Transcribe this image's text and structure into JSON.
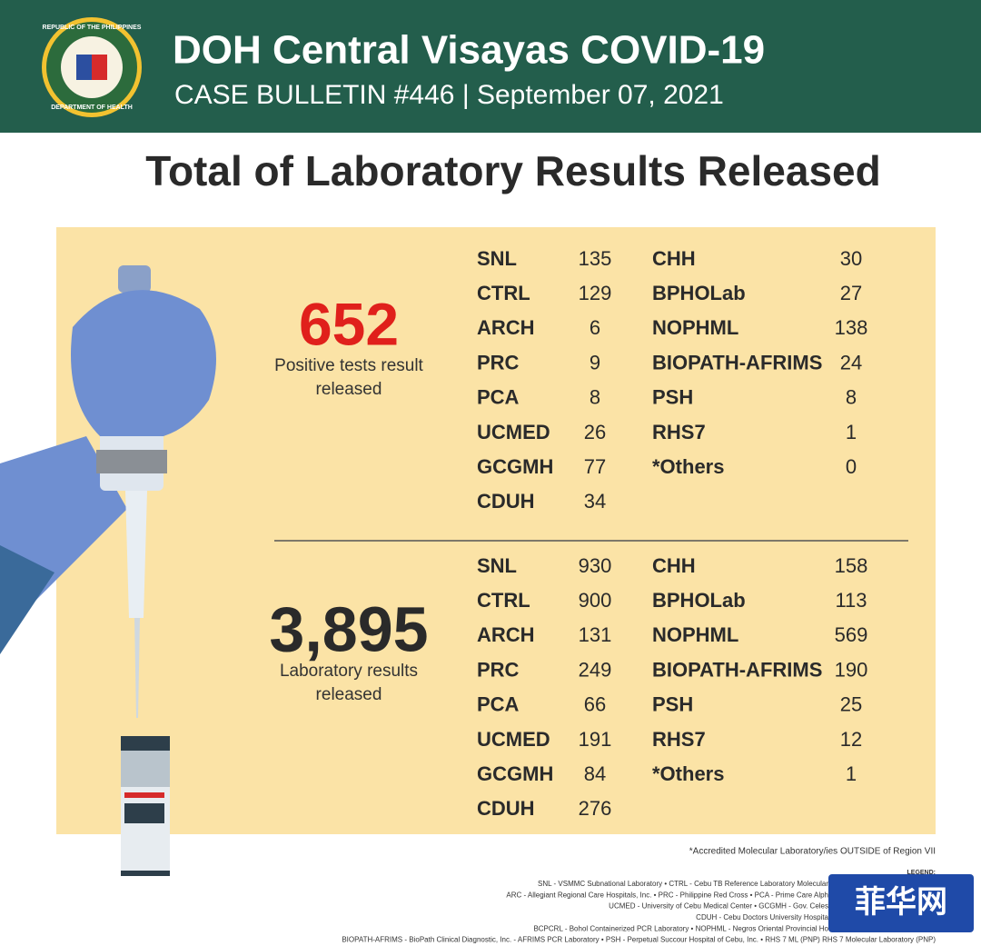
{
  "header": {
    "seal_top": "REPUBLIC OF THE PHILIPPINES",
    "seal_bottom": "DEPARTMENT OF HEALTH",
    "title": "DOH Central Visayas COVID-19",
    "subtitle": "CASE BULLETIN #446 | September 07, 2021"
  },
  "title": "Total of Laboratory Results Released",
  "sections": [
    {
      "total": "652",
      "caption": [
        "Positive tests result",
        "released"
      ],
      "left": [
        {
          "name": "SNL",
          "count": 135
        },
        {
          "name": "CTRL",
          "count": 129
        },
        {
          "name": "ARCH",
          "count": 6
        },
        {
          "name": "PRC",
          "count": 9
        },
        {
          "name": "PCA",
          "count": 8
        },
        {
          "name": "UCMED",
          "count": 26
        },
        {
          "name": "GCGMH",
          "count": 77
        },
        {
          "name": "CDUH",
          "count": 34
        }
      ],
      "right": [
        {
          "name": "CHH",
          "count": 30
        },
        {
          "name": "BPHOLab",
          "count": 27
        },
        {
          "name": "NOPHML",
          "count": 138
        },
        {
          "name": "BIOPATH-AFRIMS",
          "count": 24
        },
        {
          "name": "PSH",
          "count": 8
        },
        {
          "name": "RHS7",
          "count": 1
        },
        {
          "name": "*Others",
          "count": 0
        }
      ]
    },
    {
      "total": "3,895",
      "caption": [
        "Laboratory results",
        "released"
      ],
      "left": [
        {
          "name": "SNL",
          "count": 930
        },
        {
          "name": "CTRL",
          "count": 900
        },
        {
          "name": "ARCH",
          "count": 131
        },
        {
          "name": "PRC",
          "count": 249
        },
        {
          "name": "PCA",
          "count": 66
        },
        {
          "name": "UCMED",
          "count": 191
        },
        {
          "name": "GCGMH",
          "count": 84
        },
        {
          "name": "CDUH",
          "count": 276
        }
      ],
      "right": [
        {
          "name": "CHH",
          "count": 158
        },
        {
          "name": "BPHOLab",
          "count": 113
        },
        {
          "name": "NOPHML",
          "count": 569
        },
        {
          "name": "BIOPATH-AFRIMS",
          "count": 190
        },
        {
          "name": "PSH",
          "count": 25
        },
        {
          "name": "RHS7",
          "count": 12
        },
        {
          "name": "*Others",
          "count": 1
        }
      ]
    }
  ],
  "footnote": "*Accredited Molecular Laboratory/ies OUTSIDE of Region VII",
  "legend": {
    "title": "LEGEND:",
    "lines": [
      "SNL - VSMMC Subnational Laboratory • CTRL - Cebu TB Reference Laboratory Molecular",
      "ARC - Allegiant Regional Care Hospitals, Inc. • PRC - Philippine Red Cross • PCA - Prime Care Alph",
      "UCMED - University of Cebu Medical Center • GCGMH - Gov. Celes",
      "CDUH - Cebu Doctors University Hospita",
      "BCPCRL - Bohol Containerized PCR Laboratory • NOPHML - Negros Oriental Provincial Ho",
      "BIOPATH-AFRIMS - BioPath Clinical Diagnostic, Inc. - AFRIMS PCR Laboratory • PSH - Perpetual Succour Hospital of Cebu, Inc. • RHS 7 ML (PNP) RHS 7 Molecular Laboratory (PNP)"
    ]
  },
  "watermark": "菲华网"
}
